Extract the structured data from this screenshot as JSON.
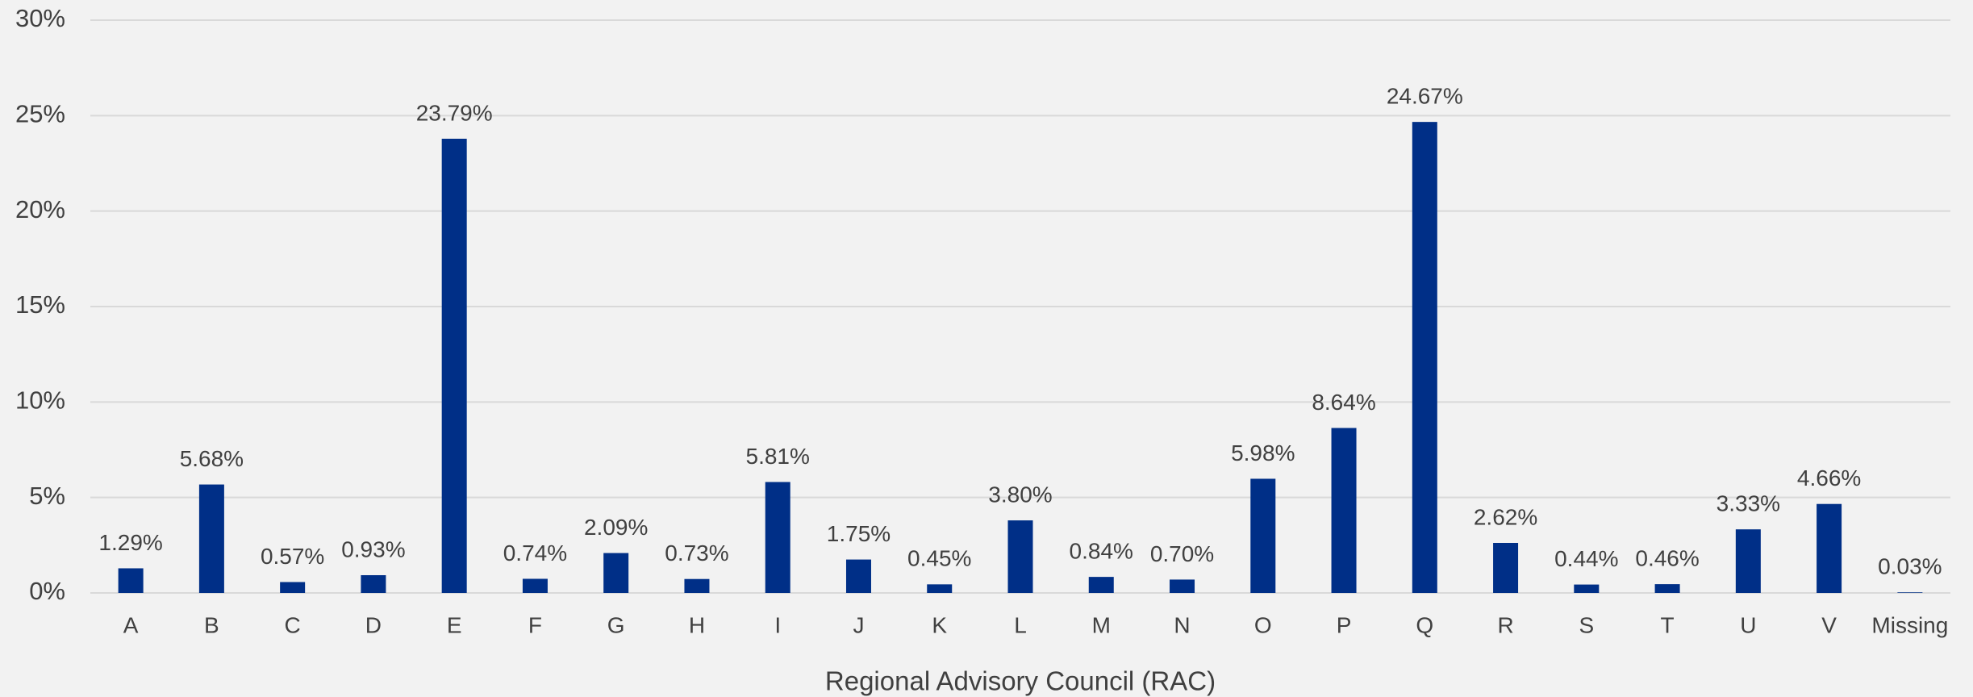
{
  "chart_data": {
    "type": "bar",
    "x_label": "Regional Advisory Council (RAC)",
    "categories": [
      "A",
      "B",
      "C",
      "D",
      "E",
      "F",
      "G",
      "H",
      "I",
      "J",
      "K",
      "L",
      "M",
      "N",
      "O",
      "P",
      "Q",
      "R",
      "S",
      "T",
      "U",
      "V",
      "Missing"
    ],
    "values": [
      1.29,
      5.68,
      0.57,
      0.93,
      23.79,
      0.74,
      2.09,
      0.73,
      5.81,
      1.75,
      0.45,
      3.8,
      0.84,
      0.7,
      5.98,
      8.64,
      24.67,
      2.62,
      0.44,
      0.46,
      3.33,
      4.66,
      0.03
    ],
    "value_labels": [
      "1.29%",
      "5.68%",
      "0.57%",
      "0.93%",
      "23.79%",
      "0.74%",
      "2.09%",
      "0.73%",
      "5.81%",
      "1.75%",
      "0.45%",
      "3.80%",
      "0.84%",
      "0.70%",
      "5.98%",
      "8.64%",
      "24.67%",
      "2.62%",
      "0.44%",
      "0.46%",
      "3.33%",
      "4.66%",
      "0.03%"
    ],
    "color": "#002f87",
    "ylim": [
      0,
      30
    ],
    "yticks": [
      {
        "value": 0,
        "label": "0%"
      },
      {
        "value": 5,
        "label": "5%"
      },
      {
        "value": 10,
        "label": "10%"
      },
      {
        "value": 15,
        "label": "15%"
      },
      {
        "value": 20,
        "label": "20%"
      },
      {
        "value": 25,
        "label": "25%"
      },
      {
        "value": 30,
        "label": "30%"
      }
    ],
    "grid": true
  }
}
